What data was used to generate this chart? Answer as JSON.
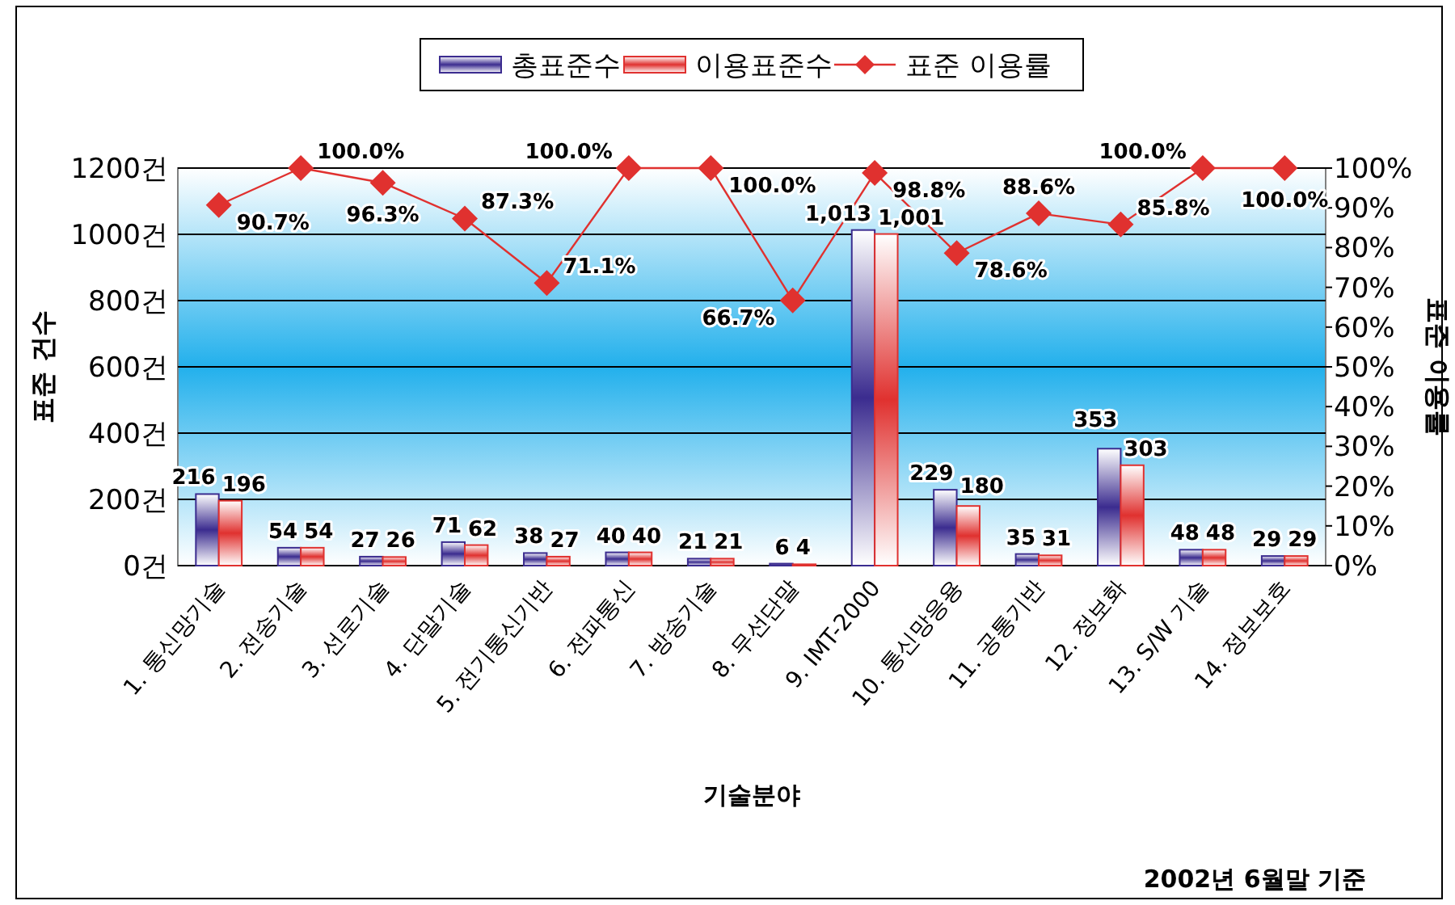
{
  "chart_data": {
    "type": "bar",
    "xlabel": "기술분야",
    "ylabel": "표준 건수",
    "y2label": "표준 이용률",
    "categories": [
      "1. 통신망기술",
      "2. 전송기술",
      "3. 선로기술",
      "4. 단말기술",
      "5. 전기통신기반",
      "6. 전파통신",
      "7. 방송기술",
      "8. 무선단말",
      "9. IMT-2000",
      "10. 통신망응용",
      "11. 공통기반",
      "12. 정보화",
      "13. S/W 기술",
      "14. 정보보호"
    ],
    "series": [
      {
        "name": "총표준수",
        "color": "#3b2c8f",
        "values": [
          216,
          54,
          27,
          71,
          38,
          40,
          21,
          6,
          1013,
          229,
          35,
          353,
          48,
          29
        ],
        "value_labels": [
          "216",
          "54",
          "27",
          "71",
          "38",
          "40",
          "21",
          "6",
          "1,013",
          "229",
          "35",
          "353",
          "48",
          "29"
        ]
      },
      {
        "name": "이용표준수",
        "color": "#e0312f",
        "values": [
          196,
          54,
          26,
          62,
          27,
          40,
          21,
          4,
          1001,
          180,
          31,
          303,
          48,
          29
        ],
        "value_labels": [
          "196",
          "54",
          "26",
          "62",
          "27",
          "40",
          "21",
          "4",
          "1,001",
          "180",
          "31",
          "303",
          "48",
          "29"
        ]
      },
      {
        "name": "표준 이용률",
        "type": "line",
        "axis": "y2",
        "color": "#e0312f",
        "values": [
          90.7,
          100.0,
          96.3,
          87.3,
          71.1,
          100.0,
          100.0,
          66.7,
          98.8,
          78.6,
          88.6,
          85.8,
          100.0,
          100.0
        ],
        "value_labels": [
          "90.7%",
          "100.0%",
          "96.3%",
          "87.3%",
          "71.1%",
          "100.0%",
          "100.0%",
          "66.7%",
          "98.8%",
          "78.6%",
          "88.6%",
          "85.8%",
          "100.0%",
          "100.0%"
        ]
      }
    ],
    "ylim": [
      0,
      1200
    ],
    "yticks": [
      {
        "value": 0,
        "label": "0건"
      },
      {
        "value": 200,
        "label": "200건"
      },
      {
        "value": 400,
        "label": "400건"
      },
      {
        "value": 600,
        "label": "600건"
      },
      {
        "value": 800,
        "label": "800건"
      },
      {
        "value": 1000,
        "label": "1000건"
      },
      {
        "value": 1200,
        "label": "1200건"
      }
    ],
    "y2lim": [
      0,
      100
    ],
    "y2ticks": [
      {
        "value": 0,
        "label": "0%"
      },
      {
        "value": 10,
        "label": "10%"
      },
      {
        "value": 20,
        "label": "20%"
      },
      {
        "value": 30,
        "label": "30%"
      },
      {
        "value": 40,
        "label": "40%"
      },
      {
        "value": 50,
        "label": "50%"
      },
      {
        "value": 60,
        "label": "60%"
      },
      {
        "value": 70,
        "label": "70%"
      },
      {
        "value": 80,
        "label": "80%"
      },
      {
        "value": 90,
        "label": "90%"
      },
      {
        "value": 100,
        "label": "100%"
      }
    ],
    "grid": "y",
    "legend": "top",
    "marker": "diamond",
    "line_style": "solid",
    "annotations": [
      "2002년 6월말 기준"
    ]
  }
}
